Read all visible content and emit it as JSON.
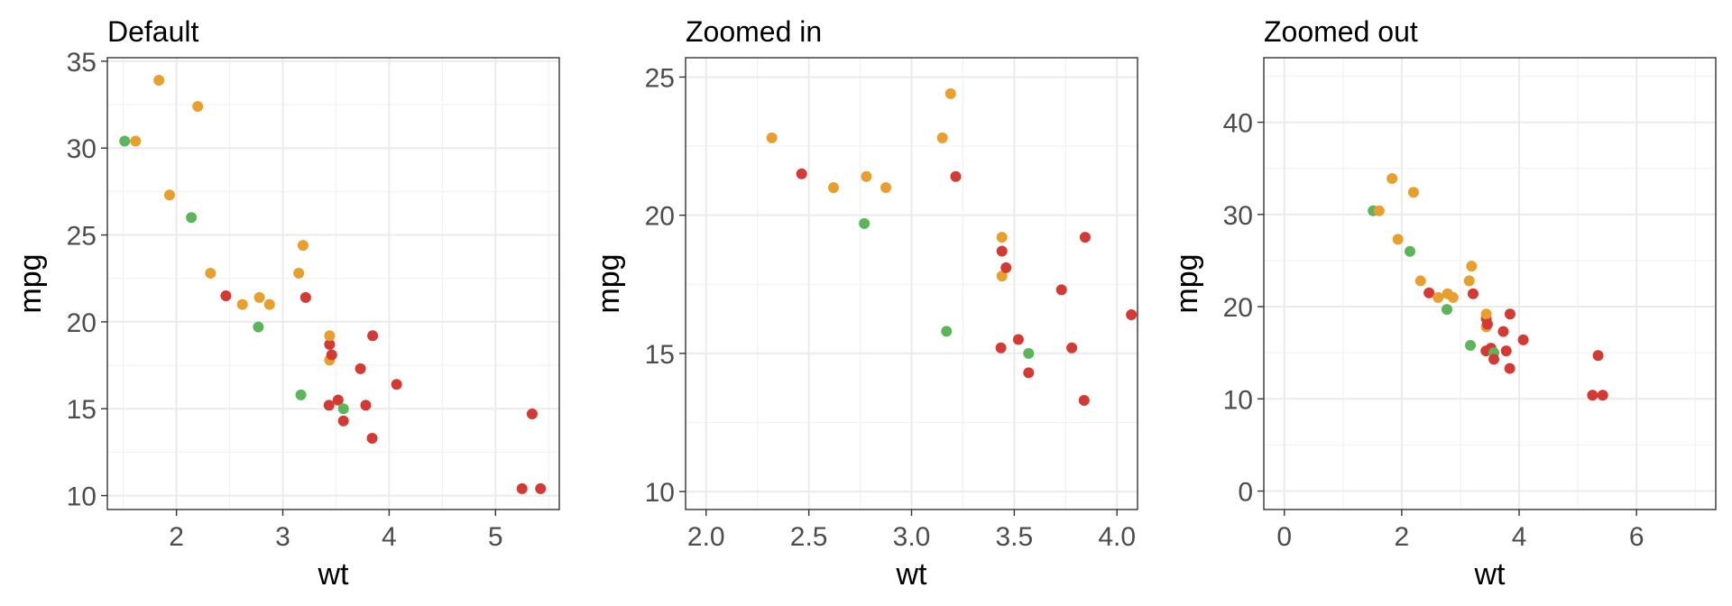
{
  "colors": {
    "orange": "#e89f2e",
    "red": "#d43a33",
    "green": "#5bb55b"
  },
  "chart_data": [
    {
      "type": "scatter",
      "title": "Default",
      "xlabel": "wt",
      "ylabel": "mpg",
      "xlim": [
        1.35,
        5.6
      ],
      "ylim": [
        9.2,
        35.2
      ],
      "x_ticks": [
        2,
        3,
        4,
        5
      ],
      "x_tick_labels": [
        "2",
        "3",
        "4",
        "5"
      ],
      "y_ticks": [
        10,
        15,
        20,
        25,
        30,
        35
      ],
      "y_tick_labels": [
        "10",
        "15",
        "20",
        "25",
        "30",
        "35"
      ],
      "grid": true
    },
    {
      "type": "scatter",
      "title": "Zoomed in",
      "xlabel": "wt",
      "ylabel": "mpg",
      "xlim": [
        1.9,
        4.1
      ],
      "ylim": [
        9.35,
        25.7
      ],
      "x_ticks": [
        2.0,
        2.5,
        3.0,
        3.5,
        4.0
      ],
      "x_tick_labels": [
        "2.0",
        "2.5",
        "3.0",
        "3.5",
        "4.0"
      ],
      "y_ticks": [
        10,
        15,
        20,
        25
      ],
      "y_tick_labels": [
        "10",
        "15",
        "20",
        "25"
      ],
      "grid": true
    },
    {
      "type": "scatter",
      "title": "Zoomed out",
      "xlabel": "wt",
      "ylabel": "mpg",
      "xlim": [
        -0.35,
        7.35
      ],
      "ylim": [
        -2.0,
        47.0
      ],
      "x_ticks": [
        0,
        2,
        4,
        6
      ],
      "x_tick_labels": [
        "0",
        "2",
        "4",
        "6"
      ],
      "y_ticks": [
        0,
        10,
        20,
        30,
        40
      ],
      "y_tick_labels": [
        "0",
        "10",
        "20",
        "30",
        "40"
      ],
      "grid": true
    }
  ],
  "points": [
    {
      "x": 1.513,
      "y": 30.4,
      "c": "green"
    },
    {
      "x": 1.615,
      "y": 30.4,
      "c": "orange"
    },
    {
      "x": 1.835,
      "y": 33.9,
      "c": "orange"
    },
    {
      "x": 1.935,
      "y": 27.3,
      "c": "orange"
    },
    {
      "x": 2.14,
      "y": 26.0,
      "c": "green"
    },
    {
      "x": 2.2,
      "y": 32.4,
      "c": "orange"
    },
    {
      "x": 2.32,
      "y": 22.8,
      "c": "orange"
    },
    {
      "x": 2.465,
      "y": 21.5,
      "c": "red"
    },
    {
      "x": 2.62,
      "y": 21.0,
      "c": "orange"
    },
    {
      "x": 2.77,
      "y": 19.7,
      "c": "green"
    },
    {
      "x": 2.78,
      "y": 21.4,
      "c": "orange"
    },
    {
      "x": 2.875,
      "y": 21.0,
      "c": "orange"
    },
    {
      "x": 3.15,
      "y": 22.8,
      "c": "orange"
    },
    {
      "x": 3.17,
      "y": 15.8,
      "c": "green"
    },
    {
      "x": 3.19,
      "y": 24.4,
      "c": "orange"
    },
    {
      "x": 3.215,
      "y": 21.4,
      "c": "red"
    },
    {
      "x": 3.435,
      "y": 15.2,
      "c": "red"
    },
    {
      "x": 3.44,
      "y": 18.7,
      "c": "red"
    },
    {
      "x": 3.44,
      "y": 19.2,
      "c": "orange"
    },
    {
      "x": 3.44,
      "y": 17.8,
      "c": "orange"
    },
    {
      "x": 3.46,
      "y": 18.1,
      "c": "red"
    },
    {
      "x": 3.52,
      "y": 15.5,
      "c": "red"
    },
    {
      "x": 3.57,
      "y": 15.0,
      "c": "green"
    },
    {
      "x": 3.57,
      "y": 14.3,
      "c": "red"
    },
    {
      "x": 3.73,
      "y": 17.3,
      "c": "red"
    },
    {
      "x": 3.78,
      "y": 15.2,
      "c": "red"
    },
    {
      "x": 3.84,
      "y": 13.3,
      "c": "red"
    },
    {
      "x": 3.845,
      "y": 19.2,
      "c": "red"
    },
    {
      "x": 4.07,
      "y": 16.4,
      "c": "red"
    },
    {
      "x": 5.25,
      "y": 10.4,
      "c": "red"
    },
    {
      "x": 5.345,
      "y": 14.7,
      "c": "red"
    },
    {
      "x": 5.424,
      "y": 10.4,
      "c": "red"
    }
  ]
}
